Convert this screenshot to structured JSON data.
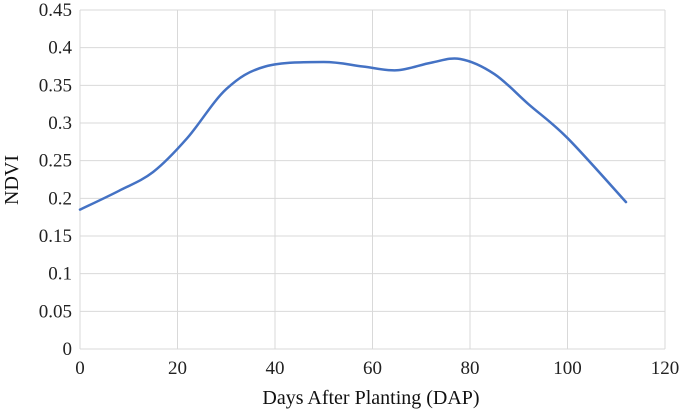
{
  "chart_data": {
    "type": "line",
    "title": "",
    "xlabel": "Days After Planting (DAP)",
    "ylabel": "NDVI",
    "xlim": [
      0,
      120
    ],
    "ylim": [
      0,
      0.45
    ],
    "x_ticks": [
      "0",
      "20",
      "40",
      "60",
      "80",
      "100",
      "120"
    ],
    "y_ticks": [
      "0",
      "0.05",
      "0.1",
      "0.15",
      "0.2",
      "0.25",
      "0.3",
      "0.35",
      "0.4",
      "0.45"
    ],
    "grid": true,
    "legend": "none",
    "series": [
      {
        "color": "#4472C4",
        "x": [
          0,
          8,
          15,
          22,
          30,
          38,
          50,
          58,
          65,
          72,
          78,
          85,
          92,
          100,
          112
        ],
        "y": [
          0.185,
          0.21,
          0.235,
          0.28,
          0.345,
          0.375,
          0.381,
          0.375,
          0.37,
          0.38,
          0.385,
          0.365,
          0.325,
          0.28,
          0.195
        ]
      }
    ]
  }
}
